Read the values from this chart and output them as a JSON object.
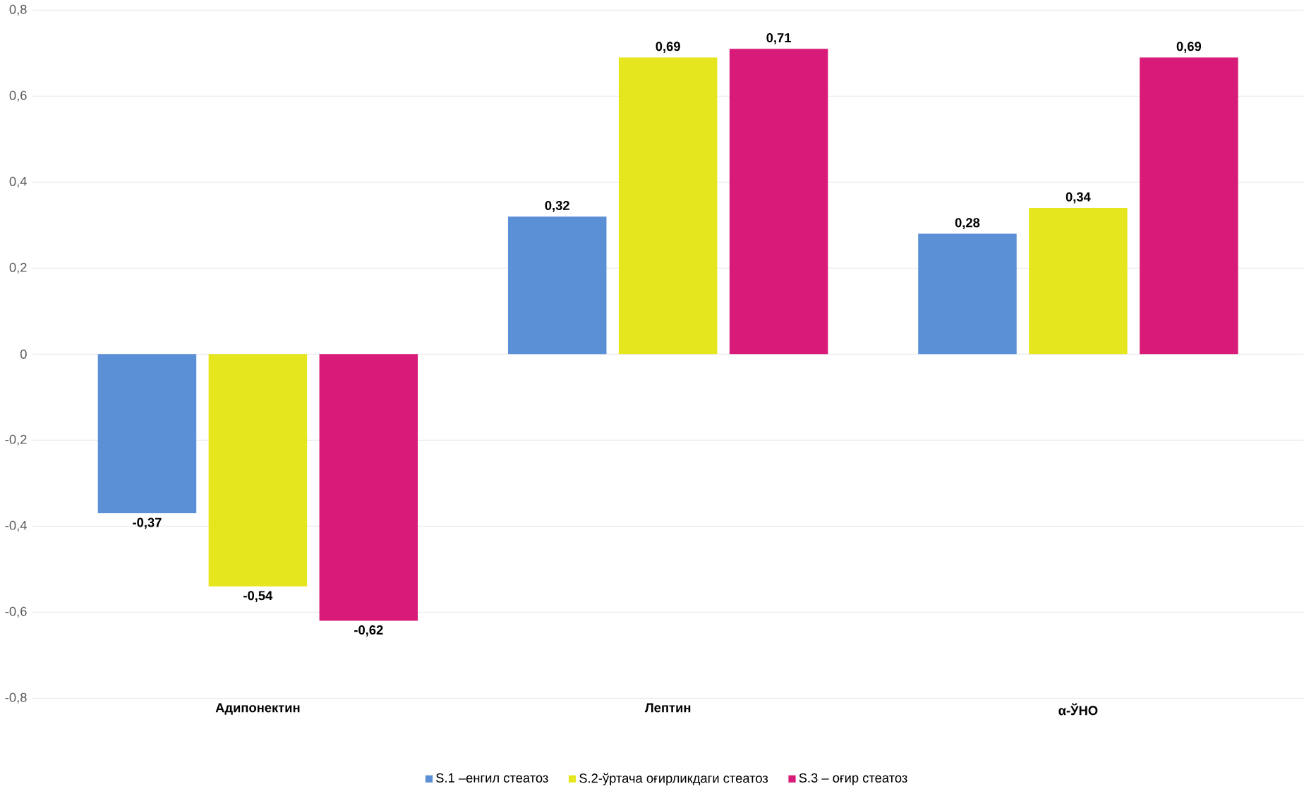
{
  "chart_data": {
    "type": "bar",
    "categories": [
      "Адипонектин",
      "Лептин",
      "α-ЎНО"
    ],
    "series": [
      {
        "name": "S.1 –енгил стеатоз",
        "color": "#5b8fd6",
        "values": [
          -0.37,
          0.32,
          0.28
        ],
        "value_labels": [
          "-0,37",
          "0,32",
          "0,28"
        ]
      },
      {
        "name": "S.2-ўртача оғирликдаги стеатоз",
        "color": "#e6e61e",
        "values": [
          -0.54,
          0.69,
          0.34
        ],
        "value_labels": [
          "-0,54",
          "0,69",
          "0,34"
        ]
      },
      {
        "name": "S.3 – оғир стеатоз",
        "color": "#d81b78",
        "values": [
          -0.62,
          0.71,
          0.69
        ],
        "value_labels": [
          "-0,62",
          "0,71",
          "0,69"
        ]
      }
    ],
    "ylim": [
      -0.8,
      0.8
    ],
    "yticks": [
      {
        "value": -0.8,
        "label": "-0,8"
      },
      {
        "value": -0.6,
        "label": "-0,6"
      },
      {
        "value": -0.4,
        "label": "-0,4"
      },
      {
        "value": -0.2,
        "label": "-0,2"
      },
      {
        "value": 0,
        "label": "0"
      },
      {
        "value": 0.2,
        "label": "0,2"
      },
      {
        "value": 0.4,
        "label": "0,4"
      },
      {
        "value": 0.6,
        "label": "0,6"
      },
      {
        "value": 0.8,
        "label": "0,8"
      }
    ],
    "grid": "y",
    "legend": "bottom"
  }
}
